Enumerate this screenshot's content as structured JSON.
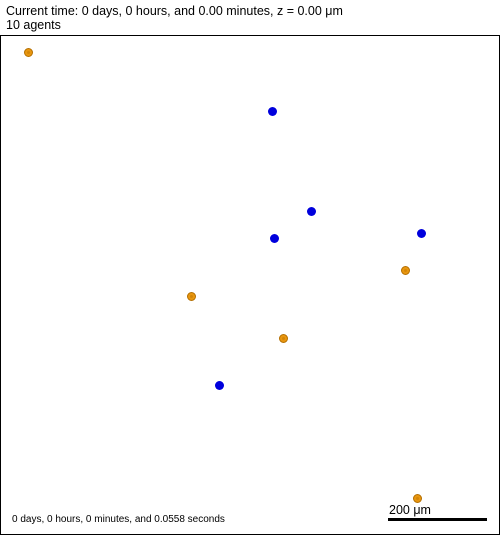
{
  "header": {
    "time_line": "Current time: 0 days, 0 hours, and 0.00 minutes, z = 0.00 μm",
    "agents_line": "10 agents"
  },
  "footer": {
    "elapsed_line": "0 days, 0 hours, 0 minutes, and 0.0558 seconds",
    "scale_label": "200 μm"
  },
  "colors": {
    "cell_type_a": "#0000dd",
    "cell_type_b": "#e8960f"
  }
}
